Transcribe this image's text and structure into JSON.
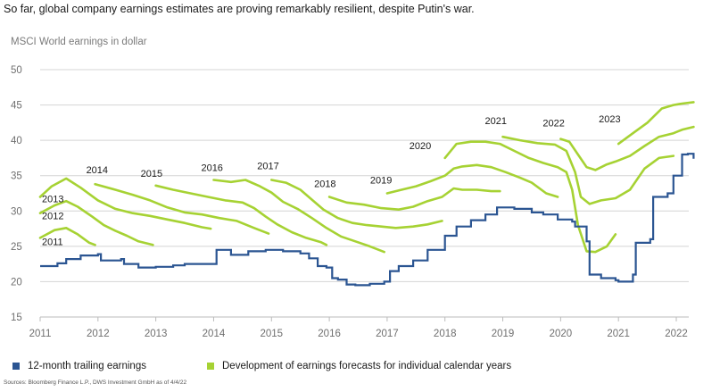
{
  "headline": "So far, global company earnings estimates are proving remarkably resilient, despite Putin's war.",
  "source": "Sources: Bloomberg Finance L.P., DWS Investment GmbH as of 4/4/22",
  "colors": {
    "trailing": "#2b5592",
    "forecast": "#a6d233",
    "grid": "#d4d4d4",
    "axis": "#bbbbbb",
    "text": "#6f6f6f"
  },
  "chart_data": {
    "type": "line",
    "title": "",
    "ylabel": "MSCI World earnings in dollar",
    "xlabel": "",
    "xlim": [
      2011,
      2022.3
    ],
    "ylim": [
      15,
      50
    ],
    "grid": true,
    "legend_position": "bottom-left",
    "x_ticks": [
      "2011",
      "2012",
      "2013",
      "2014",
      "2015",
      "2016",
      "2017",
      "2018",
      "2019",
      "2020",
      "2021",
      "2022"
    ],
    "y_ticks": [
      15,
      20,
      25,
      30,
      35,
      40,
      45,
      50
    ],
    "legend": [
      {
        "label": "12-month trailing earnings",
        "series": "trailing"
      },
      {
        "label": "Development of earnings forecasts for individual calendar years",
        "series": "forecast"
      }
    ],
    "series_trailing": {
      "x": [
        2011,
        2011.3,
        2011.45,
        2011.7,
        2012.0,
        2012.05,
        2012.4,
        2012.45,
        2012.7,
        2012.95,
        2013.0,
        2013.3,
        2013.5,
        2014.0,
        2014.05,
        2014.3,
        2014.6,
        2014.9,
        2015.2,
        2015.5,
        2015.65,
        2015.8,
        2015.95,
        2016.05,
        2016.15,
        2016.3,
        2016.45,
        2016.7,
        2016.95,
        2017.05,
        2017.2,
        2017.45,
        2017.7,
        2017.95,
        2018.0,
        2018.2,
        2018.45,
        2018.7,
        2018.9,
        2019.2,
        2019.5,
        2019.7,
        2019.95,
        2020.2,
        2020.25,
        2020.45,
        2020.5,
        2020.7,
        2020.95,
        2021.0,
        2021.25,
        2021.3,
        2021.55,
        2021.6,
        2021.85,
        2021.95,
        2022.1,
        2022.2,
        2022.3
      ],
      "y": [
        22.2,
        22.6,
        23.2,
        23.7,
        23.9,
        23.0,
        23.2,
        22.5,
        22.0,
        22.0,
        22.1,
        22.3,
        22.5,
        22.5,
        24.5,
        23.8,
        24.3,
        24.5,
        24.3,
        24.0,
        23.3,
        22.2,
        22.0,
        20.5,
        20.3,
        19.6,
        19.5,
        19.7,
        20.0,
        21.5,
        22.2,
        23.0,
        24.5,
        24.5,
        26.5,
        27.8,
        28.7,
        29.5,
        30.5,
        30.3,
        29.8,
        29.5,
        28.8,
        28.5,
        27.8,
        25.7,
        21.0,
        20.5,
        20.2,
        20.0,
        21.0,
        25.5,
        26.0,
        32.0,
        32.5,
        35.0,
        38.0,
        38.1,
        37.4
      ]
    },
    "series_forecast": [
      {
        "year_label": "2011",
        "x": [
          2011,
          2011.25,
          2011.45,
          2011.65,
          2011.85,
          2011.95
        ],
        "y": [
          26.2,
          27.3,
          27.6,
          26.7,
          25.5,
          25.2
        ]
      },
      {
        "year_label": "2012",
        "x": [
          2011,
          2011.25,
          2011.45,
          2011.65,
          2011.9,
          2012.1,
          2012.3,
          2012.5,
          2012.7,
          2012.95
        ],
        "y": [
          29.7,
          30.8,
          31.4,
          30.6,
          29.2,
          28.0,
          27.2,
          26.5,
          25.7,
          25.2
        ]
      },
      {
        "year_label": "2013",
        "x": [
          2011,
          2011.2,
          2011.45,
          2011.7,
          2012.0,
          2012.3,
          2012.6,
          2012.9,
          2013.2,
          2013.5,
          2013.8,
          2013.95
        ],
        "y": [
          32.0,
          33.5,
          34.6,
          33.3,
          31.5,
          30.3,
          29.7,
          29.3,
          28.8,
          28.3,
          27.7,
          27.5
        ]
      },
      {
        "year_label": "2014",
        "x": [
          2011.95,
          2012.3,
          2012.6,
          2012.9,
          2013.2,
          2013.5,
          2013.8,
          2014.1,
          2014.4,
          2014.7,
          2014.95
        ],
        "y": [
          33.8,
          33.0,
          32.3,
          31.5,
          30.5,
          29.8,
          29.5,
          29.0,
          28.6,
          27.6,
          26.8
        ]
      },
      {
        "year_label": "2015",
        "x": [
          2013.0,
          2013.3,
          2013.6,
          2013.9,
          2014.2,
          2014.5,
          2014.7,
          2014.9,
          2015.1,
          2015.35,
          2015.6,
          2015.85,
          2015.95
        ],
        "y": [
          33.6,
          33.0,
          32.5,
          32.0,
          31.5,
          31.2,
          30.4,
          29.2,
          28.1,
          27.0,
          26.2,
          25.6,
          25.2
        ]
      },
      {
        "year_label": "2016",
        "x": [
          2014.0,
          2014.3,
          2014.55,
          2014.8,
          2015.0,
          2015.2,
          2015.45,
          2015.7,
          2015.95,
          2016.2,
          2016.45,
          2016.7,
          2016.95
        ],
        "y": [
          34.4,
          34.1,
          34.4,
          33.5,
          32.6,
          31.3,
          30.3,
          29.0,
          27.6,
          26.4,
          25.7,
          25.0,
          24.2
        ]
      },
      {
        "year_label": "2017",
        "x": [
          2015.0,
          2015.25,
          2015.5,
          2015.7,
          2015.9,
          2016.15,
          2016.4,
          2016.65,
          2016.9,
          2017.15,
          2017.45,
          2017.7,
          2017.95
        ],
        "y": [
          34.4,
          34.0,
          33.0,
          31.6,
          30.2,
          29.0,
          28.3,
          28.0,
          27.8,
          27.6,
          27.8,
          28.1,
          28.6
        ]
      },
      {
        "year_label": "2018",
        "x": [
          2016.0,
          2016.3,
          2016.6,
          2016.9,
          2017.2,
          2017.45,
          2017.7,
          2017.95,
          2018.15,
          2018.3,
          2018.55,
          2018.8,
          2018.95
        ],
        "y": [
          32.0,
          31.2,
          30.9,
          30.4,
          30.2,
          30.6,
          31.4,
          32.0,
          33.2,
          33.0,
          33.0,
          32.8,
          32.8
        ]
      },
      {
        "year_label": "2019",
        "x": [
          2017.0,
          2017.25,
          2017.5,
          2017.75,
          2018.0,
          2018.15,
          2018.3,
          2018.55,
          2018.8,
          2019.05,
          2019.3,
          2019.5,
          2019.75,
          2019.95
        ],
        "y": [
          32.5,
          33.0,
          33.5,
          34.2,
          35.0,
          36.0,
          36.3,
          36.5,
          36.2,
          35.5,
          34.7,
          34.0,
          32.5,
          32.0
        ]
      },
      {
        "year_label": "2020",
        "x": [
          2018.0,
          2018.2,
          2018.45,
          2018.7,
          2018.95,
          2019.2,
          2019.45,
          2019.7,
          2019.95,
          2020.1,
          2020.2,
          2020.3,
          2020.45,
          2020.6,
          2020.8,
          2020.95
        ],
        "y": [
          37.5,
          39.5,
          39.8,
          39.8,
          39.5,
          38.5,
          37.5,
          36.8,
          36.2,
          35.5,
          33.0,
          28.0,
          24.3,
          24.2,
          25.0,
          26.7
        ]
      },
      {
        "year_label": "2021",
        "x": [
          2019.0,
          2019.3,
          2019.6,
          2019.9,
          2020.1,
          2020.25,
          2020.35,
          2020.5,
          2020.7,
          2020.95,
          2021.2,
          2021.45,
          2021.7,
          2021.95
        ],
        "y": [
          40.5,
          40.0,
          39.6,
          39.4,
          38.5,
          35.5,
          32.0,
          31.0,
          31.5,
          31.8,
          33.0,
          36.0,
          37.5,
          37.8
        ]
      },
      {
        "year_label": "2022",
        "x": [
          2020.0,
          2020.15,
          2020.3,
          2020.45,
          2020.6,
          2020.8,
          2020.95,
          2021.2,
          2021.45,
          2021.7,
          2021.95,
          2022.1,
          2022.3
        ],
        "y": [
          40.2,
          39.8,
          38.0,
          36.2,
          35.8,
          36.6,
          37.0,
          37.8,
          39.2,
          40.5,
          41.0,
          41.5,
          41.9
        ]
      },
      {
        "year_label": "2023",
        "x": [
          2021.0,
          2021.25,
          2021.5,
          2021.75,
          2021.95,
          2022.1,
          2022.3
        ],
        "y": [
          39.5,
          41.0,
          42.5,
          44.5,
          45.0,
          45.2,
          45.4
        ]
      }
    ]
  }
}
